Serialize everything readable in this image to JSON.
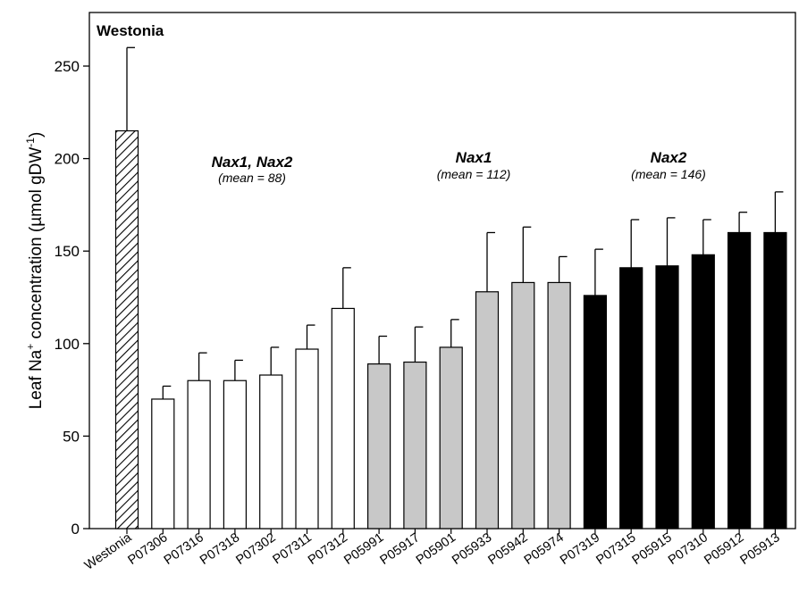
{
  "chart_data": {
    "type": "bar",
    "ylabel_main": "Leaf Na",
    "ylabel_sup1": "+",
    "ylabel_mid": " concentration (µmol gDW",
    "ylabel_sup2": "-1",
    "ylabel_end": ")",
    "ylim": [
      0,
      275
    ],
    "yticks": [
      0,
      50,
      100,
      150,
      200,
      250
    ],
    "grid": false,
    "categories": [
      "Westonia",
      "P07306",
      "P07316",
      "P07318",
      "P07302",
      "P07311",
      "P07312",
      "P05991",
      "P05917",
      "P05901",
      "P05933",
      "P05942",
      "P05974",
      "P07319",
      "P07315",
      "P05915",
      "P07310",
      "P05912",
      "P05913"
    ],
    "values": [
      215,
      70,
      80,
      80,
      83,
      97,
      119,
      89,
      90,
      98,
      128,
      133,
      133,
      126,
      141,
      142,
      148,
      160,
      160
    ],
    "errors": [
      45,
      7,
      15,
      11,
      15,
      13,
      22,
      15,
      19,
      15,
      32,
      30,
      14,
      25,
      26,
      26,
      19,
      11,
      22
    ],
    "groups": [
      "control",
      "nax12",
      "nax12",
      "nax12",
      "nax12",
      "nax12",
      "nax12",
      "nax1",
      "nax1",
      "nax1",
      "nax1",
      "nax1",
      "nax1",
      "nax2",
      "nax2",
      "nax2",
      "nax2",
      "nax2",
      "nax2"
    ],
    "group_colors": {
      "control": "#ffffff",
      "nax12": "#ffffff",
      "nax1": "#c8c8c8",
      "nax2": "#000000"
    },
    "control_pattern": "diagonal-hatch",
    "control_label": "Westonia",
    "annotations": [
      {
        "title": "Nax1, Nax2",
        "subtitle": "(mean = 88)"
      },
      {
        "title": "Nax1",
        "subtitle": "(mean = 112)"
      },
      {
        "title": "Nax2",
        "subtitle": "(mean = 146)"
      }
    ]
  }
}
